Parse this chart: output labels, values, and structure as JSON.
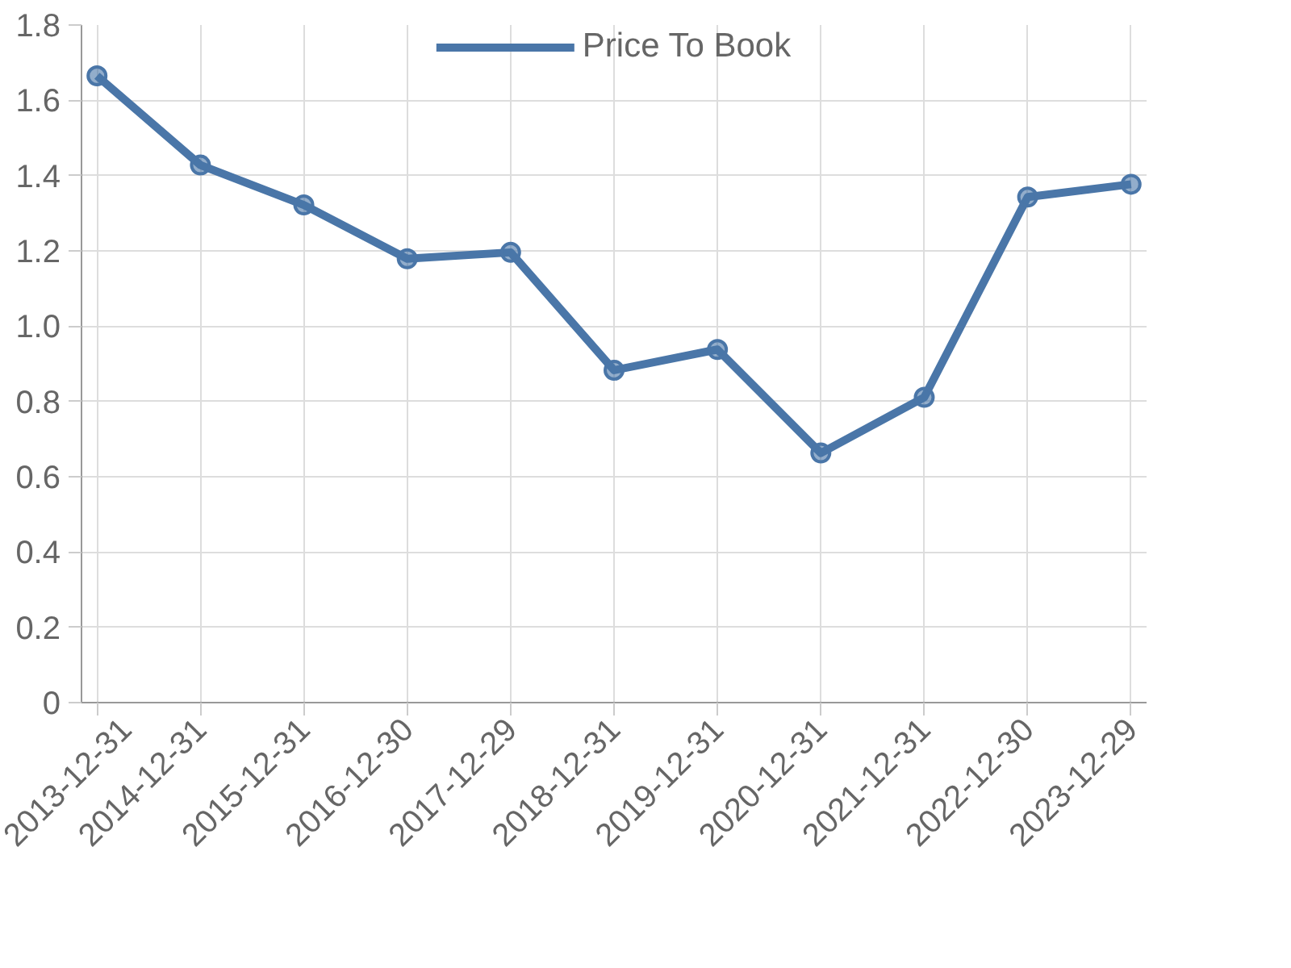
{
  "chart_data": {
    "type": "line",
    "categories": [
      "2013-12-31",
      "2014-12-31",
      "2015-12-31",
      "2016-12-30",
      "2017-12-29",
      "2018-12-31",
      "2019-12-31",
      "2020-12-31",
      "2021-12-31",
      "2022-12-30",
      "2023-12-29"
    ],
    "series": [
      {
        "name": "Price To Book",
        "color": "#4a76a8",
        "values": [
          1.665,
          1.428,
          1.322,
          1.179,
          1.196,
          0.883,
          0.938,
          0.663,
          0.811,
          1.343,
          1.377
        ]
      }
    ],
    "ylim": [
      0,
      1.8
    ],
    "yticks": [
      0,
      0.2,
      0.4,
      0.6,
      0.8,
      {
        "value": 1,
        "label": "1.0"
      },
      1.2,
      1.4,
      1.6,
      1.8
    ],
    "grid": true,
    "legend": "top",
    "marker": "circle",
    "line_style": "solid"
  }
}
